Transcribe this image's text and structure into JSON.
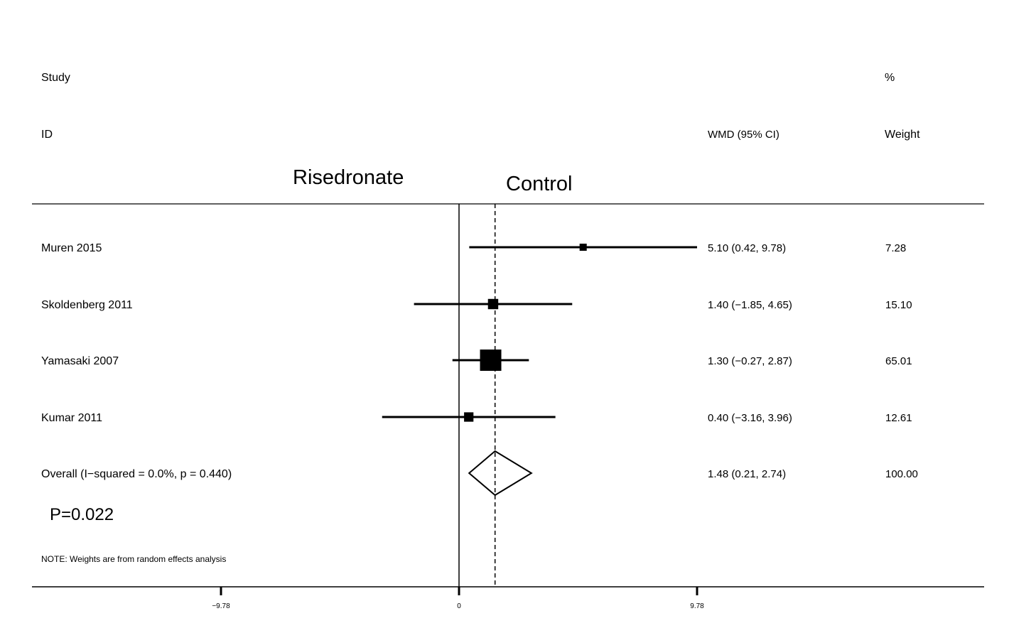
{
  "header": {
    "study_line1": "Study",
    "study_line2": "ID",
    "effect_header": "WMD (95% CI)",
    "weight_line1": "%",
    "weight_line2": "Weight"
  },
  "favours": {
    "left": "Risedronate",
    "right": "Control"
  },
  "p_value": "P=0.022",
  "note": "NOTE: Weights are from random effects analysis",
  "chart_data": {
    "type": "forest",
    "effect_measure": "WMD (95% CI)",
    "xlim": [
      -9.78,
      9.78
    ],
    "x_ticks": [
      {
        "value": -9.78,
        "label": "−9.78"
      },
      {
        "value": 0,
        "label": "0"
      },
      {
        "value": 9.78,
        "label": "9.78"
      }
    ],
    "studies": [
      {
        "name": "Muren 2015",
        "estimate": 5.1,
        "lower": 0.42,
        "upper": 9.78,
        "ci_text": "5.10 (0.42, 9.78)",
        "weight": 7.28,
        "weight_text": "7.28"
      },
      {
        "name": "Skoldenberg 2011",
        "estimate": 1.4,
        "lower": -1.85,
        "upper": 4.65,
        "ci_text": "1.40 (−1.85, 4.65)",
        "weight": 15.1,
        "weight_text": "15.10"
      },
      {
        "name": "Yamasaki 2007",
        "estimate": 1.3,
        "lower": -0.27,
        "upper": 2.87,
        "ci_text": "1.30 (−0.27, 2.87)",
        "weight": 65.01,
        "weight_text": "65.01"
      },
      {
        "name": "Kumar 2011",
        "estimate": 0.4,
        "lower": -3.16,
        "upper": 3.96,
        "ci_text": "0.40 (−3.16, 3.96)",
        "weight": 12.61,
        "weight_text": "12.61"
      }
    ],
    "overall": {
      "name": "Overall  (I−squared = 0.0%, p = 0.440)",
      "estimate": 1.48,
      "lower": 0.21,
      "upper": 2.74,
      "ci_text": "1.48 (0.21, 2.74)",
      "weight_text": "100.00"
    },
    "null_line": 0,
    "pooled_line": 1.48
  }
}
